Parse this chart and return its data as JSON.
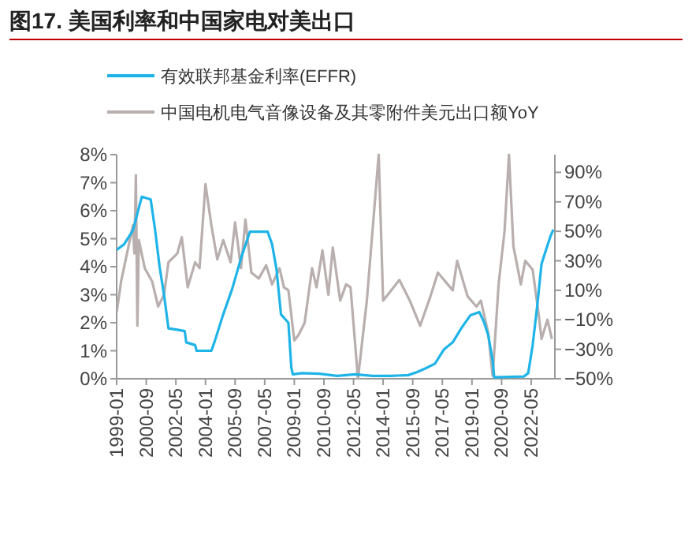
{
  "chart_data": {
    "type": "line",
    "title": "图17. 美国利率和中国家电对美出口",
    "legend": "top",
    "grid": false,
    "xlim": [
      "1999-01",
      "2023-09"
    ],
    "xticks": [
      "1999-01",
      "2000-09",
      "2002-05",
      "2004-01",
      "2005-09",
      "2007-05",
      "2009-01",
      "2010-09",
      "2012-05",
      "2014-01",
      "2015-09",
      "2017-05",
      "2019-01",
      "2020-09",
      "2022-05"
    ],
    "ylim": [
      0,
      8
    ],
    "yticks": [
      {
        "value": 0,
        "label": "0%"
      },
      {
        "value": 1,
        "label": "1%"
      },
      {
        "value": 2,
        "label": "2%"
      },
      {
        "value": 3,
        "label": "3%"
      },
      {
        "value": 4,
        "label": "4%"
      },
      {
        "value": 5,
        "label": "5%"
      },
      {
        "value": 6,
        "label": "6%"
      },
      {
        "value": 7,
        "label": "7%"
      },
      {
        "value": 8,
        "label": "8%"
      }
    ],
    "y2lim": [
      -50,
      102
    ],
    "y2ticks": [
      {
        "value": -50,
        "label": "−50%"
      },
      {
        "value": -30,
        "label": "−30%"
      },
      {
        "value": -10,
        "label": "−10%"
      },
      {
        "value": 10,
        "label": "10%"
      },
      {
        "value": 30,
        "label": "30%"
      },
      {
        "value": 50,
        "label": "50%"
      },
      {
        "value": 70,
        "label": "70%"
      },
      {
        "value": 90,
        "label": "90%"
      }
    ],
    "series": [
      {
        "name": "有效联邦基金利率(EFFR)",
        "color": "#1fb4e8",
        "axis": "y",
        "x": [
          "1999-01",
          "1999-06",
          "1999-12",
          "2000-06",
          "2000-12",
          "2001-03",
          "2001-06",
          "2001-09",
          "2001-12",
          "2002-06",
          "2002-11",
          "2002-12",
          "2003-06",
          "2003-07",
          "2004-05",
          "2004-07",
          "2005-01",
          "2005-07",
          "2006-01",
          "2006-07",
          "2007-07",
          "2007-10",
          "2008-01",
          "2008-04",
          "2008-09",
          "2008-11",
          "2008-12",
          "2009-06",
          "2010-06",
          "2011-06",
          "2012-06",
          "2013-06",
          "2014-06",
          "2015-06",
          "2015-12",
          "2016-06",
          "2016-12",
          "2017-06",
          "2017-12",
          "2018-06",
          "2018-12",
          "2019-06",
          "2019-09",
          "2019-12",
          "2020-03",
          "2020-04",
          "2021-12",
          "2022-03",
          "2022-06",
          "2022-09",
          "2022-12",
          "2023-03",
          "2023-06",
          "2023-08"
        ],
        "values": [
          4.6,
          4.8,
          5.3,
          6.5,
          6.4,
          5.3,
          4.0,
          3.0,
          1.8,
          1.75,
          1.7,
          1.3,
          1.2,
          1.0,
          1.0,
          1.3,
          2.3,
          3.2,
          4.3,
          5.25,
          5.25,
          4.8,
          3.9,
          2.3,
          2.0,
          0.4,
          0.16,
          0.2,
          0.18,
          0.1,
          0.16,
          0.1,
          0.1,
          0.13,
          0.24,
          0.38,
          0.54,
          1.04,
          1.3,
          1.82,
          2.27,
          2.38,
          2.04,
          1.55,
          0.65,
          0.05,
          0.08,
          0.2,
          1.2,
          2.56,
          4.1,
          4.6,
          5.08,
          5.33
        ]
      },
      {
        "name": "中国电机电气音像设备及其零附件美元出口额YoY",
        "color": "#b8afae",
        "axis": "y2",
        "x": [
          "1999-01",
          "1999-04",
          "1999-12",
          "2000-01",
          "2000-02",
          "2000-03",
          "2000-04",
          "2000-08",
          "2001-01",
          "2001-05",
          "2001-09",
          "2001-12",
          "2002-06",
          "2002-09",
          "2003-01",
          "2003-06",
          "2003-09",
          "2004-01",
          "2004-05",
          "2004-09",
          "2005-01",
          "2005-06",
          "2005-09",
          "2006-01",
          "2006-04",
          "2006-08",
          "2007-01",
          "2007-06",
          "2007-10",
          "2008-03",
          "2008-06",
          "2008-09",
          "2009-01",
          "2009-04",
          "2009-08",
          "2010-01",
          "2010-04",
          "2010-08",
          "2010-12",
          "2011-03",
          "2011-08",
          "2011-12",
          "2012-03",
          "2012-08",
          "2013-02",
          "2013-10",
          "2014-01",
          "2014-12",
          "2015-07",
          "2016-02",
          "2016-09",
          "2017-02",
          "2017-12",
          "2018-03",
          "2018-10",
          "2019-04",
          "2019-07",
          "2019-12",
          "2020-03",
          "2020-07",
          "2020-11",
          "2021-02",
          "2021-05",
          "2021-10",
          "2022-01",
          "2022-06",
          "2022-10",
          "2022-12",
          "2023-04",
          "2023-07"
        ],
        "values": [
          -5,
          16,
          54,
          35,
          88,
          -14,
          44,
          25,
          16,
          -1,
          7,
          29,
          35,
          46,
          12,
          29,
          25,
          82,
          54,
          31,
          44,
          29,
          56,
          25,
          58,
          22,
          18,
          27,
          14,
          25,
          12,
          10,
          -24,
          -20,
          -12,
          25,
          12,
          37,
          7,
          39,
          3,
          14,
          12,
          -50,
          3,
          102,
          3,
          17,
          3,
          -14,
          6,
          22,
          10,
          30,
          6,
          -1,
          3,
          -19,
          -48,
          14,
          50,
          102,
          40,
          14,
          30,
          24,
          -6,
          -23,
          -10,
          -23
        ]
      }
    ]
  }
}
